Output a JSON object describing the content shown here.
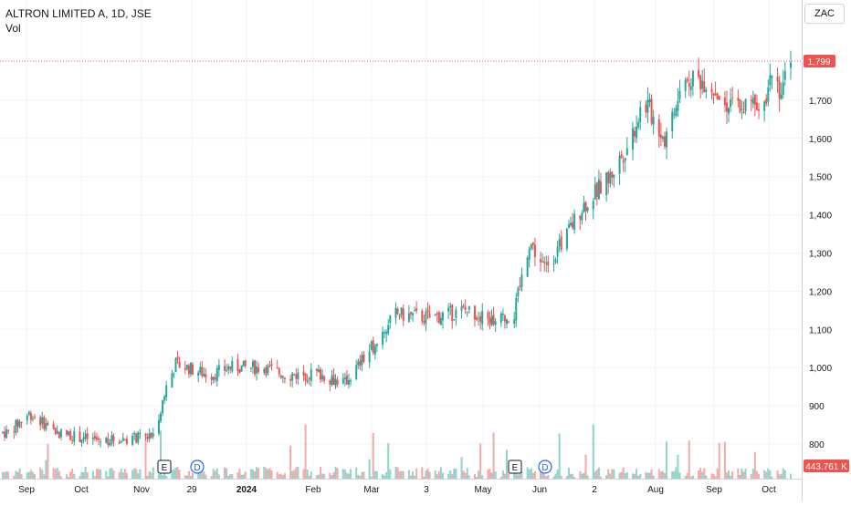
{
  "legend": {
    "title": "ALTRON LIMITED A, 1D, JSE",
    "volume_label": "Vol"
  },
  "price_scale": {
    "currency": "ZAC",
    "ticks": [
      "1,700",
      "1,600",
      "1,500",
      "1,400",
      "1,300",
      "1,200",
      "1,100",
      "1,000",
      "900",
      "800"
    ],
    "last_price_label": "1,799",
    "volume_label": "443.761 K"
  },
  "time_axis": {
    "labels": [
      "Sep",
      "Oct",
      "Nov",
      "29",
      "2024",
      "Feb",
      "Mar",
      "3",
      "May",
      "Jun",
      "2",
      "Aug",
      "Sep",
      "Oct"
    ]
  },
  "markers": [
    {
      "type": "earnings",
      "label": "E"
    },
    {
      "type": "dividend",
      "label": "D"
    },
    {
      "type": "earnings",
      "label": "E"
    },
    {
      "type": "dividend",
      "label": "D"
    }
  ],
  "colors": {
    "up": "#26a69a",
    "down": "#ef5350",
    "grid": "#f0f3fa",
    "price_line": "#ef5350",
    "dividend": "#2962ff"
  },
  "chart_data": {
    "type": "candlestick",
    "symbol": "ALTRON LIMITED A",
    "interval": "1D",
    "exchange": "JSE",
    "currency": "ZAC",
    "ylim": [
      760,
      1880
    ],
    "last_price": 1799,
    "last_volume": "443.761 K",
    "anchors": [
      {
        "x": "Aug 25, 2023",
        "price": 830
      },
      {
        "x": "Sep 5, 2023",
        "price": 880
      },
      {
        "x": "Sep 20, 2023",
        "price": 830
      },
      {
        "x": "Oct 10, 2023",
        "price": 810
      },
      {
        "x": "Oct 31, 2023",
        "price": 815
      },
      {
        "x": "Nov 10, 2023",
        "price": 820
      },
      {
        "x": "Nov 17, 2023",
        "price": 950
      },
      {
        "x": "Nov 22, 2023",
        "price": 1010
      },
      {
        "x": "Dec 10, 2023",
        "price": 980
      },
      {
        "x": "Dec 20, 2023",
        "price": 1000
      },
      {
        "x": "Jan 8, 2024",
        "price": 1000
      },
      {
        "x": "Jan 20, 2024",
        "price": 980
      },
      {
        "x": "Feb 5, 2024",
        "price": 985
      },
      {
        "x": "Feb 20, 2024",
        "price": 960
      },
      {
        "x": "Mar 5, 2024",
        "price": 1050
      },
      {
        "x": "Mar 18, 2024",
        "price": 1140
      },
      {
        "x": "Apr 5, 2024",
        "price": 1130
      },
      {
        "x": "Apr 25, 2024",
        "price": 1150
      },
      {
        "x": "May 10, 2024",
        "price": 1120
      },
      {
        "x": "May 20, 2024",
        "price": 1140
      },
      {
        "x": "May 28, 2024",
        "price": 1330
      },
      {
        "x": "Jun 5, 2024",
        "price": 1260
      },
      {
        "x": "Jun 15, 2024",
        "price": 1330
      },
      {
        "x": "Jun 25, 2024",
        "price": 1420
      },
      {
        "x": "Jul 10, 2024",
        "price": 1500
      },
      {
        "x": "Jul 20, 2024",
        "price": 1590
      },
      {
        "x": "Jul 28, 2024",
        "price": 1700
      },
      {
        "x": "Aug 8, 2024",
        "price": 1600
      },
      {
        "x": "Aug 20, 2024",
        "price": 1760
      },
      {
        "x": "Aug 30, 2024",
        "price": 1750
      },
      {
        "x": "Sep 12, 2024",
        "price": 1680
      },
      {
        "x": "Sep 25, 2024",
        "price": 1690
      },
      {
        "x": "Oct 1, 2024",
        "price": 1720
      },
      {
        "x": "Oct 4, 2024",
        "price": 1790
      },
      {
        "x": "Oct 9, 2024",
        "price": 1720
      },
      {
        "x": "Oct 14, 2024",
        "price": 1799
      }
    ]
  }
}
